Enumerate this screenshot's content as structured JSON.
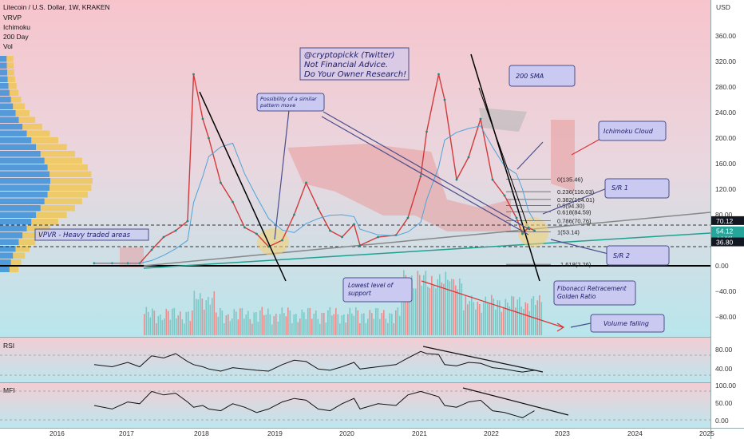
{
  "header": {
    "title": "Litecoin / U.S. Dollar, 1W, KRAKEN",
    "indicators": [
      "VRVP",
      "Ichimoku",
      "200 Day",
      "Vol"
    ]
  },
  "watermark": {
    "lines": [
      "@cryptopickk (Twitter)",
      "Not Financial Advice.",
      "Do Your Owner Research!"
    ]
  },
  "annotations": {
    "pattern": [
      "Possibility of a similar",
      "pattern move"
    ],
    "vpvr": "VPVR - Heavy traded areas",
    "sma": "200 SMA",
    "cloud": "Ichimoku Cloud",
    "sr1": "S/R 1",
    "sr2": "S/R 2",
    "support": [
      "Lowest level of",
      "support"
    ],
    "fib": [
      "Fibonacci Retracement",
      "Golden Ratio"
    ],
    "volume": "Volume falling"
  },
  "price_axis": {
    "currency": "USD",
    "ticks": [
      "360.00",
      "320.00",
      "280.00",
      "240.00",
      "200.00",
      "160.00",
      "120.00",
      "80.00",
      "40.00",
      "0.00",
      "−40.00",
      "−80.00"
    ],
    "badges": [
      {
        "label": "70.12",
        "bg": "#131722",
        "fg": "#ffffff"
      },
      {
        "label": "54.12",
        "sub": "4d 23h",
        "bg": "#26a69a",
        "fg": "#ffffff"
      },
      {
        "label": "36.80",
        "bg": "#131722",
        "fg": "#ffffff"
      }
    ]
  },
  "fib_levels": [
    "0(135.46)",
    "0.236(116.03)",
    "0.382(104.01)",
    "0.5(94.30)",
    "0.618(84.59)",
    "0.786(70.76)",
    "1(53.14)",
    "1.618(2.26)"
  ],
  "rsi": {
    "label": "RSI",
    "ticks": [
      "80.00",
      "40.00"
    ]
  },
  "mfi": {
    "label": "MFI",
    "ticks": [
      "100.00",
      "50.00",
      "0.00"
    ]
  },
  "time_axis": {
    "labels": [
      "2016",
      "2017",
      "2018",
      "2019",
      "2020",
      "2021",
      "2022",
      "2023",
      "2024",
      "2025"
    ]
  },
  "chart_data": {
    "type": "line",
    "title": "Litecoin / U.S. Dollar, 1W, KRAKEN",
    "xlabel": "",
    "ylabel": "",
    "ylim": [
      -100,
      390
    ],
    "grid": false,
    "series": [
      {
        "name": "",
        "x": [
          "2016-07",
          "2016-10",
          "2017-01",
          "2017-03",
          "2017-05",
          "2017-07",
          "2017-09",
          "2017-11",
          "2017-12",
          "2018-01",
          "2018-02",
          "2018-04",
          "2018-06",
          "2018-08",
          "2018-10",
          "2018-12",
          "2019-02",
          "2019-04",
          "2019-06",
          "2019-08",
          "2019-10",
          "2019-12",
          "2020-02",
          "2020-03",
          "2020-06",
          "2020-09",
          "2020-11",
          "2021-01",
          "2021-02",
          "2021-04",
          "2021-05",
          "2021-07",
          "2021-09",
          "2021-11",
          "2022-01",
          "2022-03",
          "2022-05",
          "2022-06",
          "2022-07",
          "2022-08"
        ],
        "values": [
          4,
          4,
          4,
          4,
          25,
          45,
          55,
          70,
          300,
          230,
          200,
          130,
          100,
          60,
          50,
          30,
          40,
          80,
          130,
          90,
          55,
          45,
          65,
          32,
          45,
          48,
          75,
          140,
          210,
          300,
          260,
          135,
          170,
          230,
          135,
          110,
          75,
          50,
          60,
          55
        ]
      }
    ],
    "rsi_series": [
      {
        "name": "RSI",
        "values": [
          55,
          50,
          60,
          50,
          75,
          70,
          80,
          62,
          55,
          50,
          45,
          40,
          48,
          45,
          42,
          40,
          55,
          65,
          62,
          45,
          42,
          50,
          60,
          45,
          50,
          55,
          70,
          85,
          80,
          78,
          55,
          52,
          60,
          58,
          48,
          45,
          40,
          38,
          40,
          42
        ]
      }
    ],
    "mfi_series": [
      {
        "name": "MFI",
        "values": [
          50,
          40,
          60,
          55,
          90,
          80,
          85,
          60,
          45,
          50,
          40,
          35,
          55,
          45,
          30,
          40,
          60,
          70,
          65,
          40,
          35,
          55,
          70,
          40,
          55,
          50,
          80,
          90,
          85,
          75,
          50,
          45,
          60,
          65,
          35,
          30,
          20,
          15,
          25,
          35
        ]
      }
    ],
    "volume_trend": "falling"
  }
}
